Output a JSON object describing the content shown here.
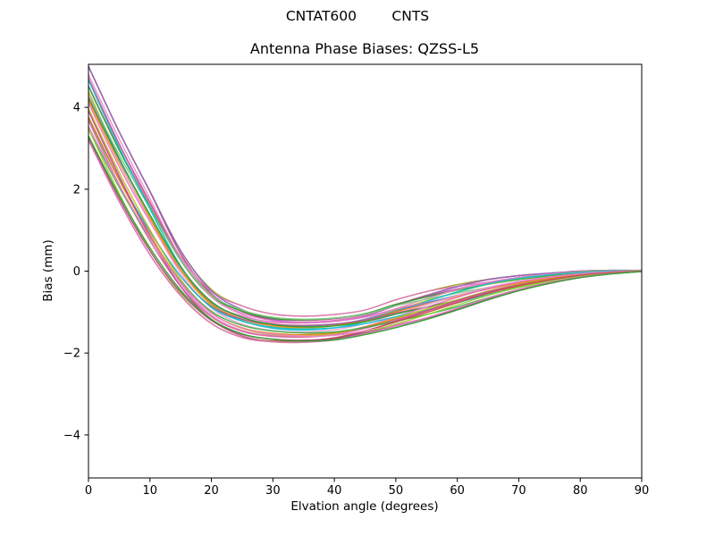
{
  "chart_data": {
    "type": "line",
    "title": "CNTAT600        CNTS",
    "subtitle": "Antenna Phase Biases: QZSS-L5",
    "xlabel": "Elvation angle (degrees)",
    "ylabel": "Bias (mm)",
    "xlim": [
      0,
      90
    ],
    "ylim": [
      -5.05,
      5.05
    ],
    "xticks": [
      0,
      10,
      20,
      30,
      40,
      50,
      60,
      70,
      80,
      90
    ],
    "yticks": [
      -4,
      -2,
      0,
      2,
      4
    ],
    "grid": false,
    "legend": "none",
    "frame_color": "#000000",
    "background_color": "#ffffff",
    "x": [
      0,
      5,
      10,
      15,
      20,
      25,
      30,
      35,
      40,
      45,
      50,
      55,
      60,
      65,
      70,
      75,
      80,
      85,
      90
    ],
    "bundle": {
      "description": "Approximately 30 unlabeled antenna phase bias curves (one per pass/satellite) filling the band between the two envelope series below; values in mm.",
      "n_lines": 30,
      "series": [
        {
          "name": "upper_envelope",
          "values": [
            5.0,
            3.4,
            1.95,
            0.5,
            -0.45,
            -0.85,
            -1.05,
            -1.1,
            -1.06,
            -0.95,
            -0.7,
            -0.5,
            -0.33,
            -0.2,
            -0.11,
            -0.05,
            0.0,
            0.02,
            0.02
          ]
        },
        {
          "name": "lower_envelope",
          "values": [
            3.2,
            1.7,
            0.4,
            -0.6,
            -1.28,
            -1.62,
            -1.73,
            -1.75,
            -1.7,
            -1.55,
            -1.38,
            -1.18,
            -0.95,
            -0.7,
            -0.48,
            -0.3,
            -0.16,
            -0.07,
            -0.01
          ]
        }
      ],
      "line_colors": [
        "#9e9d24",
        "#a84a78",
        "#e377c2",
        "#9467bd",
        "#e377c2",
        "#c2559b",
        "#2ca02c",
        "#e88fc6",
        "#bcbd22",
        "#7dc97d",
        "#17becf",
        "#e377c2",
        "#4a90c4",
        "#ff7f0e",
        "#ef9fcb",
        "#b05a92",
        "#2ca02c",
        "#e377c2",
        "#17becf",
        "#bcbd22",
        "#e08214",
        "#d4699e",
        "#3fae49",
        "#c14f8a",
        "#c0504d",
        "#ee82c3",
        "#9acd32",
        "#a84a78",
        "#e377c2",
        "#2ca02c"
      ]
    }
  }
}
